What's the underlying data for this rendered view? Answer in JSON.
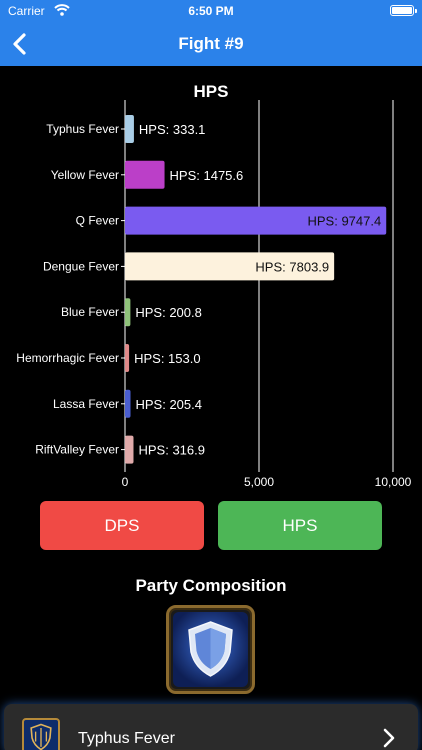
{
  "status_bar": {
    "carrier": "Carrier",
    "time": "6:50 PM"
  },
  "nav": {
    "title": "Fight #9"
  },
  "chart_data": {
    "type": "bar",
    "orientation": "horizontal",
    "title": "HPS",
    "categories": [
      "Typhus Fever",
      "Yellow Fever",
      "Q Fever",
      "Dengue Fever",
      "Blue Fever",
      "Hemorrhagic Fever",
      "Lassa Fever",
      "RiftValley Fever"
    ],
    "values": [
      333.1,
      1475.6,
      9747.4,
      7803.9,
      200.8,
      153.0,
      205.4,
      316.9
    ],
    "data_labels": [
      "HPS: 333.1",
      "HPS: 1475.6",
      "HPS: 9747.4",
      "HPS: 7803.9",
      "HPS: 200.8",
      "HPS: 153.0",
      "HPS: 205.4",
      "HPS: 316.9"
    ],
    "colors": [
      "#a9cde6",
      "#bb3fc8",
      "#7a5bf0",
      "#fdf2dd",
      "#8fc27a",
      "#e08a8a",
      "#4a5ed0",
      "#e0aaaa"
    ],
    "xlim": [
      0,
      10000
    ],
    "x_ticks": [
      "0",
      "5,000",
      "10,000"
    ],
    "x_tick_values": [
      0,
      5000,
      10000
    ],
    "grid": true
  },
  "buttons": {
    "dps": "DPS",
    "hps": "HPS"
  },
  "party": {
    "title": "Party Composition",
    "members": [
      {
        "name": "Typhus Fever",
        "icon": "shield-icon"
      }
    ]
  }
}
